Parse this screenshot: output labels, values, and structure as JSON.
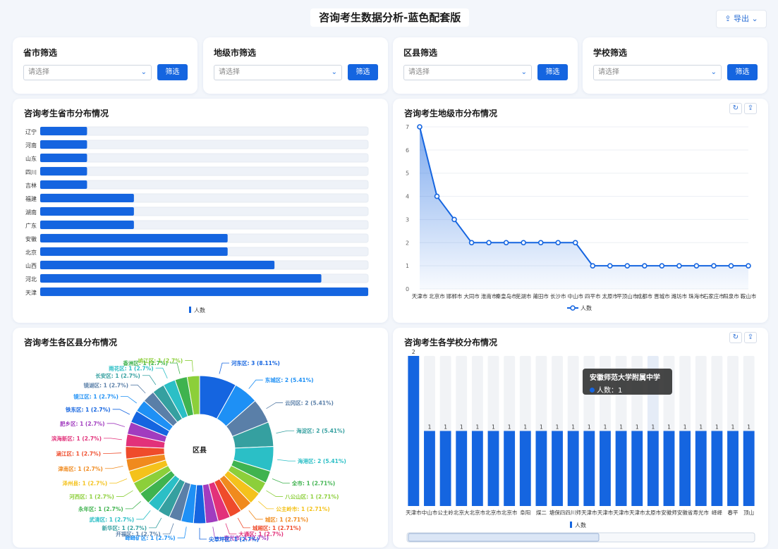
{
  "header": {
    "title": "咨询考生数据分析-蓝色配套版",
    "export_label": "导出"
  },
  "filters": [
    {
      "title": "省市筛选",
      "placeholder": "请选择",
      "button": "筛选"
    },
    {
      "title": "地级市筛选",
      "placeholder": "请选择",
      "button": "筛选"
    },
    {
      "title": "区县筛选",
      "placeholder": "请选择",
      "button": "筛选"
    },
    {
      "title": "学校筛选",
      "placeholder": "请选择",
      "button": "筛选"
    }
  ],
  "colors": {
    "primary": "#1565e0",
    "track": "#eef2f8"
  },
  "charts": {
    "province": {
      "title": "咨询考生省市分布情况"
    },
    "city": {
      "title": "咨询考生地级市分布情况"
    },
    "district": {
      "title": "咨询考生各区县分布情况"
    },
    "school": {
      "title": "咨询考生各学校分布情况",
      "tooltip_title": "安徽师范大学附属中学",
      "tooltip_value": "人数：1"
    }
  },
  "chart_data": [
    {
      "type": "bar",
      "orientation": "horizontal",
      "categories": [
        "辽宁",
        "河南",
        "山东",
        "四川",
        "吉林",
        "福建",
        "湖南",
        "广东",
        "安徽",
        "北京",
        "山西",
        "河北",
        "天津"
      ],
      "series": [
        {
          "name": "人数",
          "values": [
            1,
            1,
            1,
            1,
            1,
            2,
            2,
            2,
            4,
            4,
            5,
            6,
            7
          ]
        }
      ],
      "legend": "bottom",
      "xlim": [
        0,
        7
      ]
    },
    {
      "type": "line",
      "x": [
        "天津市",
        "北京市",
        "邯郸市",
        "大同市",
        "淮南市",
        "秦皇岛市",
        "芜湖市",
        "莆田市",
        "长沙市",
        "中山市",
        "四平市",
        "太原市",
        "平顶山市",
        "成都市",
        "晋城市",
        "潍坊市",
        "珠海市",
        "石家庄市",
        "阳泉市",
        "鞍山市"
      ],
      "series": [
        {
          "name": "人数",
          "values": [
            7,
            4,
            3,
            2,
            2,
            2,
            2,
            2,
            2,
            2,
            1,
            1,
            1,
            1,
            1,
            1,
            1,
            1,
            1,
            1
          ]
        }
      ],
      "ylim": [
        0,
        7
      ],
      "yticks": [
        0,
        1,
        2,
        3,
        4,
        5,
        6,
        7
      ],
      "legend": "bottom",
      "area": true
    },
    {
      "type": "pie",
      "center_label": "区县",
      "slices": [
        {
          "label": "河东区: 3 (8.11%)",
          "value": 3,
          "color": "#1565e0"
        },
        {
          "label": "东城区: 2 (5.41%)",
          "value": 2,
          "color": "#1e90f5"
        },
        {
          "label": "云冈区: 2 (5.41%)",
          "value": 2,
          "color": "#5a7fa8"
        },
        {
          "label": "海淀区: 2 (5.41%)",
          "value": 2,
          "color": "#35a0a0"
        },
        {
          "label": "海港区: 2 (5.41%)",
          "value": 2,
          "color": "#2bbfc6"
        },
        {
          "label": "全市: 1 (2.71%)",
          "value": 1,
          "color": "#3fb34f"
        },
        {
          "label": "八公山区: 1 (2.71%)",
          "value": 1,
          "color": "#8ccf3a"
        },
        {
          "label": "公主岭市: 1 (2.71%)",
          "value": 1,
          "color": "#f4c21b"
        },
        {
          "label": "城区: 1 (2.71%)",
          "value": 1,
          "color": "#f08a1e"
        },
        {
          "label": "城厢区: 1 (2.71%)",
          "value": 1,
          "color": "#ef4b2b"
        },
        {
          "label": "大通区: 1 (2.7%)",
          "value": 1,
          "color": "#e2317a"
        },
        {
          "label": "寿光市: 1 (2.7%)",
          "value": 1,
          "color": "#a13cbf"
        },
        {
          "label": "尖草坪区: 1 (2.7%)",
          "value": 1,
          "color": "#1565e0"
        },
        {
          "label": "峄峄矿区: 1 (2.7%)",
          "value": 1,
          "color": "#1e90f5"
        },
        {
          "label": "开福区: 1 (2.7%)",
          "value": 1,
          "color": "#5a7fa8"
        },
        {
          "label": "新华区: 1 (2.7%)",
          "value": 1,
          "color": "#35a0a0"
        },
        {
          "label": "武清区: 1 (2.7%)",
          "value": 1,
          "color": "#2bbfc6"
        },
        {
          "label": "永年区: 1 (2.7%)",
          "value": 1,
          "color": "#3fb34f"
        },
        {
          "label": "河西区: 1 (2.7%)",
          "value": 1,
          "color": "#8ccf3a"
        },
        {
          "label": "泽州县: 1 (2.7%)",
          "value": 1,
          "color": "#f4c21b"
        },
        {
          "label": "津南区: 1 (2.7%)",
          "value": 1,
          "color": "#f08a1e"
        },
        {
          "label": "涵江区: 1 (2.7%)",
          "value": 1,
          "color": "#ef4b2b"
        },
        {
          "label": "滨海新区: 1 (2.7%)",
          "value": 1,
          "color": "#e2317a"
        },
        {
          "label": "肥乡区: 1 (2.7%)",
          "value": 1,
          "color": "#a13cbf"
        },
        {
          "label": "铁东区: 1 (2.7%)",
          "value": 1,
          "color": "#1565e0"
        },
        {
          "label": "镜江区: 1 (2.7%)",
          "value": 1,
          "color": "#1e90f5"
        },
        {
          "label": "镜湖区: 1 (2.7%)",
          "value": 1,
          "color": "#5a7fa8"
        },
        {
          "label": "长安区: 1 (2.7%)",
          "value": 1,
          "color": "#35a0a0"
        },
        {
          "label": "雨花区: 1 (2.7%)",
          "value": 1,
          "color": "#2bbfc6"
        },
        {
          "label": "香洲区: 1 (2.7%)",
          "value": 1,
          "color": "#3fb34f"
        },
        {
          "label": "鸠江区: 1 (2.7%)",
          "value": 1,
          "color": "#8ccf3a"
        }
      ]
    },
    {
      "type": "bar",
      "categories": [
        "天津市",
        "中山市",
        "公主岭",
        "北京大",
        "北京市",
        "北京市",
        "北京市",
        "阜阳",
        "煤二",
        "塘保四",
        "四川师",
        "天津市",
        "天津市",
        "天津市",
        "天津市",
        "太原市",
        "安徽师",
        "安徽省",
        "寿光市",
        "峄峄",
        "春平",
        "顶山"
      ],
      "series": [
        {
          "name": "人数",
          "values": [
            2,
            1,
            1,
            1,
            1,
            1,
            1,
            1,
            1,
            1,
            1,
            1,
            1,
            1,
            1,
            1,
            1,
            1,
            1,
            1,
            1,
            1
          ]
        }
      ],
      "ylim": [
        0,
        2
      ],
      "legend": "bottom"
    }
  ]
}
